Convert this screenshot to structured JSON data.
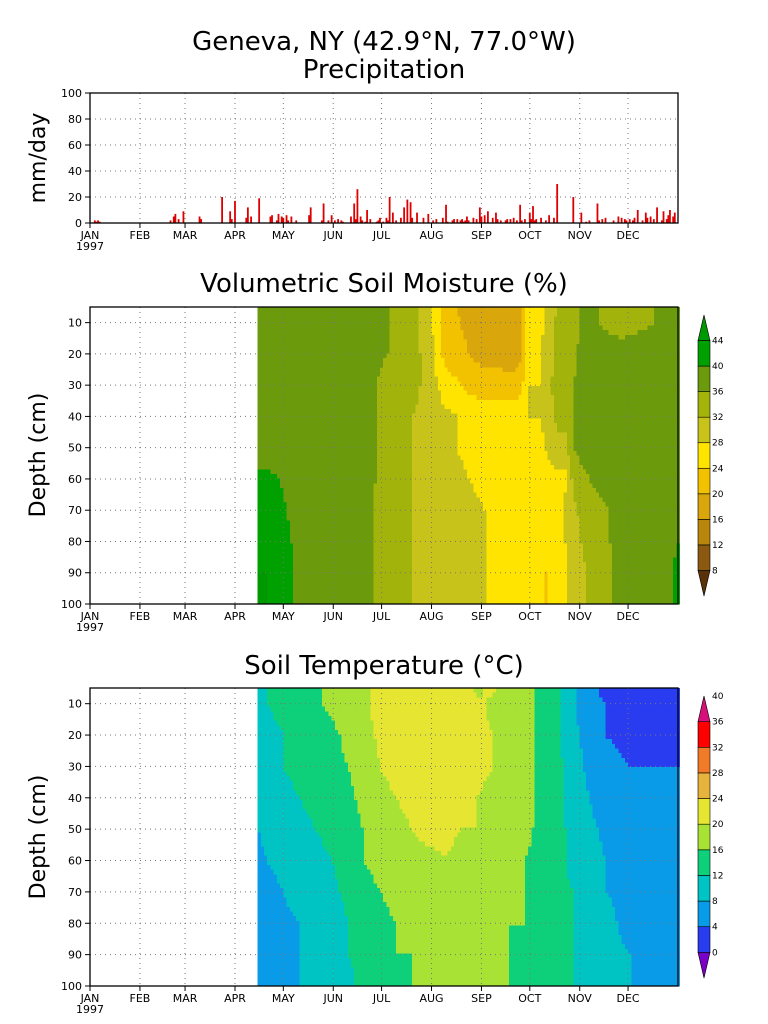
{
  "station": "Geneva, NY  (42.9°N, 77.0°W)",
  "chart_data": [
    {
      "type": "bar",
      "title": "Precipitation",
      "ylabel": "mm/day",
      "ylim": [
        0,
        100
      ],
      "yticks": [
        0,
        20,
        40,
        60,
        80,
        100
      ],
      "month_labels": [
        "JAN",
        "FEB",
        "MAR",
        "APR",
        "MAY",
        "JUN",
        "JUL",
        "AUG",
        "SEP",
        "OCT",
        "NOV",
        "DEC"
      ],
      "year_label": "1997",
      "grid": true,
      "bar_color": "#dd0000",
      "series": [
        {
          "x": [
            3,
            4,
            5,
            6,
            50,
            52,
            53,
            55,
            58,
            68,
            69,
            82,
            87,
            88,
            90,
            97,
            98,
            100,
            105,
            112,
            113,
            116,
            117,
            119,
            120,
            122,
            123,
            125,
            128,
            136,
            137,
            144,
            145,
            148,
            150,
            152,
            154,
            156,
            157,
            162,
            164,
            165,
            166,
            168,
            169,
            171,
            172,
            174,
            178,
            179,
            180,
            182,
            184,
            185,
            186,
            188,
            190,
            193,
            195,
            197,
            199,
            200,
            203,
            207,
            210,
            213,
            215,
            219,
            221,
            222,
            225,
            226,
            228,
            230,
            231,
            232,
            233,
            234,
            235,
            238,
            240,
            242,
            243,
            245,
            247,
            250,
            252,
            253,
            255,
            258,
            259,
            261,
            263,
            265,
            267,
            268,
            270,
            273,
            274,
            275,
            276,
            277,
            280,
            283,
            285,
            288,
            290,
            300,
            305,
            308,
            310,
            315,
            316,
            318,
            320,
            325,
            328,
            330,
            332,
            333,
            335,
            337,
            338,
            340,
            343,
            345,
            346,
            348,
            350,
            352,
            355,
            356,
            358,
            359,
            360,
            362,
            363
          ],
          "y": [
            2,
            1,
            2,
            1,
            2,
            5,
            7,
            3,
            9,
            5,
            3,
            20,
            9,
            3,
            17,
            4,
            12,
            5,
            19,
            5,
            6,
            2,
            7,
            5,
            4,
            6,
            2,
            5,
            2,
            6,
            12,
            2,
            15,
            2,
            6,
            2,
            3,
            2,
            1,
            5,
            15,
            3,
            26,
            5,
            2,
            1,
            10,
            3,
            1,
            2,
            4,
            1,
            4,
            2,
            20,
            8,
            2,
            4,
            12,
            18,
            16,
            4,
            8,
            4,
            7,
            2,
            3,
            4,
            14,
            1,
            2,
            3,
            3,
            2,
            3,
            1,
            2,
            5,
            2,
            4,
            3,
            12,
            5,
            6,
            9,
            4,
            8,
            3,
            2,
            2,
            3,
            3,
            4,
            2,
            14,
            2,
            3,
            8,
            3,
            13,
            2,
            3,
            4,
            2,
            6,
            4,
            30,
            20,
            8,
            1,
            2,
            15,
            2,
            3,
            4,
            2,
            5,
            4,
            3,
            2,
            3,
            2,
            4,
            10,
            2,
            8,
            4,
            5,
            3,
            12,
            2,
            9,
            3,
            6,
            10,
            5,
            8
          ]
        }
      ]
    },
    {
      "type": "heatmap",
      "title": "Volumetric Soil Moisture (%)",
      "ylabel": "Depth (cm)",
      "ylim": [
        100,
        5
      ],
      "yticks": [
        10,
        20,
        30,
        40,
        50,
        60,
        70,
        80,
        90,
        100
      ],
      "month_labels": [
        "JAN",
        "FEB",
        "MAR",
        "APR",
        "MAY",
        "JUN",
        "JUL",
        "AUG",
        "SEP",
        "OCT",
        "NOV",
        "DEC"
      ],
      "year_label": "1997",
      "colorbar_levels": [
        8,
        12,
        16,
        20,
        24,
        28,
        32,
        36,
        40,
        44
      ],
      "colors": [
        "#5a3209",
        "#8b5a10",
        "#b8860b",
        "#d9a60b",
        "#f2c200",
        "#ffe400",
        "#c8c31a",
        "#a2b40c",
        "#6b9a0c",
        "#00a000",
        "#009800"
      ],
      "data_start_day": 104,
      "depths": [
        5,
        10,
        20,
        30,
        40,
        50,
        60,
        70,
        80,
        90,
        100
      ],
      "days": [
        104,
        110,
        130,
        150,
        170,
        185,
        200,
        210,
        220,
        235,
        245,
        255,
        262,
        268,
        272,
        280,
        290,
        295,
        300,
        305,
        315,
        330,
        350,
        365
      ],
      "values": [
        [
          38,
          37,
          37,
          37,
          37,
          36,
          33,
          30,
          22,
          18,
          17,
          16,
          16,
          18,
          26,
          27,
          32,
          34,
          35,
          36,
          36,
          35,
          36,
          37
        ],
        [
          38,
          38,
          38,
          38,
          37,
          36,
          33,
          30,
          22,
          19,
          17,
          17,
          16,
          18,
          26,
          27,
          33,
          34,
          35,
          36,
          36,
          35,
          36,
          37
        ],
        [
          38,
          38,
          38,
          38,
          37,
          36,
          33,
          31,
          23,
          20,
          18,
          18,
          17,
          19,
          27,
          28,
          33,
          34,
          35,
          37,
          37,
          37,
          37,
          37
        ],
        [
          38,
          38,
          38,
          38,
          37,
          35,
          33,
          31,
          26,
          23,
          22,
          22,
          22,
          23,
          28,
          28,
          34,
          34,
          36,
          37,
          37,
          37,
          37,
          37
        ],
        [
          38,
          38,
          38,
          38,
          37,
          35,
          32,
          31,
          29,
          27,
          26,
          26,
          26,
          26,
          28,
          28,
          33,
          33,
          36,
          37,
          37,
          37,
          37,
          37
        ],
        [
          38,
          38,
          38,
          38,
          37,
          35,
          32,
          31,
          29,
          27,
          27,
          27,
          27,
          26,
          27,
          27,
          31,
          31,
          36,
          37,
          37,
          37,
          37,
          37
        ],
        [
          41,
          41,
          38,
          38,
          37,
          35,
          32,
          30,
          30,
          28,
          27,
          27,
          27,
          26,
          26,
          26,
          27,
          27,
          33,
          35,
          37,
          37,
          37,
          38
        ],
        [
          43,
          43,
          38,
          38,
          37,
          34,
          32,
          30,
          30,
          29,
          28,
          27,
          26,
          26,
          25,
          25,
          26,
          29,
          31,
          33,
          35,
          37,
          37,
          39
        ],
        [
          44,
          43,
          39,
          38,
          37,
          34,
          32,
          31,
          30,
          29,
          28,
          27,
          26,
          25,
          25,
          25,
          25,
          28,
          30,
          32,
          35,
          37,
          37,
          40
        ],
        [
          44,
          44,
          39,
          38,
          37,
          34,
          32,
          31,
          30,
          29,
          28,
          27,
          26,
          25,
          24,
          24,
          24,
          27,
          30,
          31,
          34,
          37,
          37,
          41
        ],
        [
          44,
          44,
          39,
          38,
          37,
          34,
          32,
          31,
          30,
          29,
          28,
          27,
          26,
          25,
          24,
          24,
          24,
          27,
          30,
          31,
          34,
          37,
          37,
          41
        ]
      ]
    },
    {
      "type": "heatmap",
      "title": "Soil Temperature (°C)",
      "ylabel": "Depth (cm)",
      "ylim": [
        100,
        5
      ],
      "yticks": [
        10,
        20,
        30,
        40,
        50,
        60,
        70,
        80,
        90,
        100
      ],
      "month_labels": [
        "JAN",
        "FEB",
        "MAR",
        "APR",
        "MAY",
        "JUN",
        "JUL",
        "AUG",
        "SEP",
        "OCT",
        "NOV",
        "DEC"
      ],
      "year_label": "1997",
      "colorbar_levels": [
        0,
        4,
        8,
        12,
        16,
        20,
        24,
        28,
        32,
        36,
        40
      ],
      "colors": [
        "#7a00c8",
        "#2a3cf0",
        "#0a9be8",
        "#00c4c4",
        "#0fd07a",
        "#a8e234",
        "#e6e632",
        "#e6b43c",
        "#f07a28",
        "#ff0000",
        "#d8107a"
      ],
      "data_start_day": 104,
      "depths": [
        5,
        10,
        20,
        30,
        40,
        50,
        60,
        70,
        80,
        90,
        100
      ],
      "days": [
        104,
        110,
        130,
        150,
        160,
        170,
        180,
        190,
        200,
        210,
        220,
        230,
        240,
        250,
        260,
        270,
        280,
        290,
        300,
        310,
        320,
        335,
        350,
        365
      ],
      "values": [
        [
          10,
          12,
          14,
          17,
          18,
          19,
          22,
          23,
          23,
          23,
          22,
          22,
          19,
          21,
          18,
          17,
          15,
          13,
          9,
          5,
          3,
          2,
          3,
          2
        ],
        [
          10,
          12,
          14,
          17,
          18,
          19,
          22,
          23,
          23,
          23,
          22,
          22,
          21,
          19,
          18,
          17,
          15,
          13,
          9,
          5,
          4,
          2,
          3,
          2
        ],
        [
          9,
          11,
          13,
          15,
          17,
          18,
          21,
          22,
          22,
          22,
          22,
          22,
          21,
          20,
          18,
          17,
          15,
          13,
          9,
          6,
          4,
          3,
          3,
          3
        ],
        [
          9,
          11,
          13,
          15,
          16,
          18,
          20,
          21,
          22,
          22,
          22,
          21,
          21,
          20,
          18,
          17,
          15,
          13,
          10,
          7,
          5,
          4,
          4,
          4
        ],
        [
          8,
          10,
          12,
          14,
          15,
          17,
          19,
          20,
          21,
          22,
          21,
          21,
          20,
          19,
          18,
          17,
          15,
          13,
          10,
          8,
          6,
          5,
          5,
          5
        ],
        [
          8,
          9,
          11,
          13,
          15,
          16,
          18,
          19,
          20,
          21,
          21,
          20,
          20,
          19,
          18,
          17,
          15,
          13,
          11,
          9,
          7,
          6,
          6,
          6
        ],
        [
          7,
          8,
          10,
          12,
          14,
          16,
          17,
          18,
          19,
          19,
          20,
          19,
          19,
          18,
          17,
          16,
          15,
          13,
          11,
          10,
          8,
          7,
          6,
          6
        ],
        [
          6,
          7,
          9,
          11,
          13,
          15,
          16,
          17,
          18,
          18,
          19,
          19,
          18,
          18,
          17,
          16,
          15,
          13,
          12,
          10,
          8,
          7,
          7,
          7
        ],
        [
          5,
          7,
          8,
          10,
          12,
          14,
          15,
          16,
          17,
          17,
          17,
          17,
          17,
          17,
          16,
          16,
          14,
          13,
          12,
          10,
          9,
          7,
          7,
          7
        ],
        [
          5,
          6,
          8,
          10,
          12,
          13,
          14,
          16,
          16,
          16,
          16,
          16,
          16,
          16,
          16,
          15,
          14,
          13,
          12,
          11,
          9,
          8,
          7,
          7
        ],
        [
          5,
          6,
          8,
          10,
          11,
          13,
          14,
          15,
          16,
          16,
          16,
          16,
          16,
          16,
          16,
          15,
          14,
          13,
          12,
          11,
          9,
          8,
          7,
          7
        ]
      ]
    }
  ]
}
